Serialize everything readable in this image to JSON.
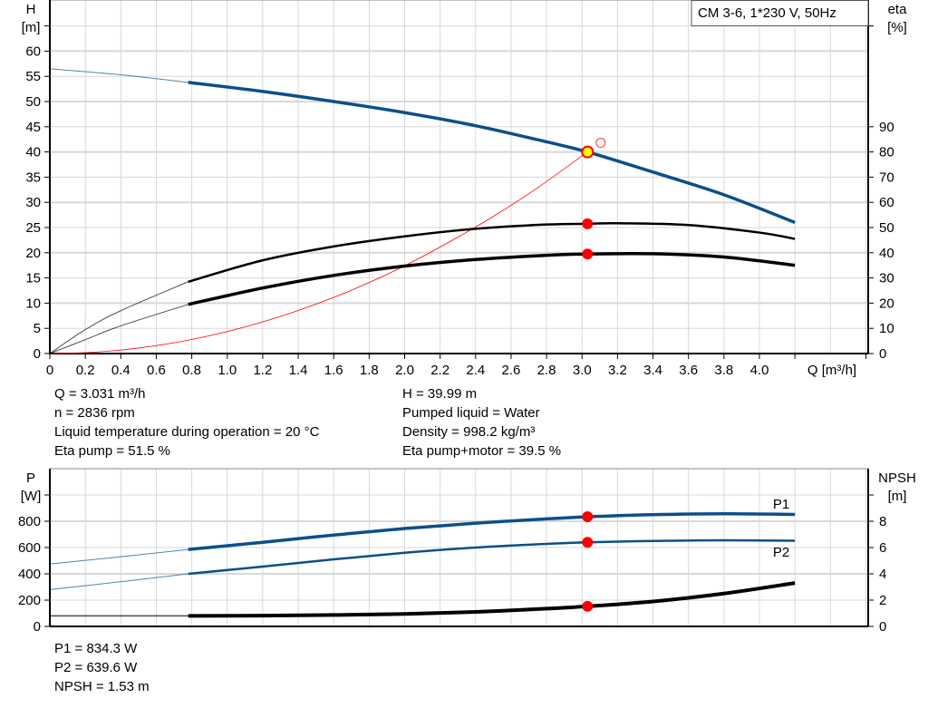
{
  "title": "CM 3-6, 1*230 V, 50Hz",
  "colors": {
    "head": "#0b4f8a",
    "power": "#0b4f8a",
    "efficiency": "#000000",
    "npsh": "#000000",
    "system": "#ff0000",
    "duty_point": "#ff0000",
    "operating_marker": "#ffff00",
    "grid": "#d8d8d8"
  },
  "chart_data": [
    {
      "type": "line",
      "title": "CM 3-6, 1*230 V, 50Hz",
      "xlabel": "Q [m³/h]",
      "ylabel": "H\n[m]",
      "ylabel_right": "eta\n[%]",
      "ylabel_lines": [
        "H",
        "[m]"
      ],
      "ylabel_right_lines": [
        "eta",
        "[%]"
      ],
      "xlim": [
        0,
        4.6
      ],
      "ylim": [
        0,
        70
      ],
      "ylim_right": [
        0,
        140
      ],
      "grid": true,
      "xticks": [
        "0",
        "0.2",
        "0.4",
        "0.6",
        "0.8",
        "1.0",
        "1.2",
        "1.4",
        "1.6",
        "1.8",
        "2.0",
        "2.2",
        "2.4",
        "2.6",
        "2.8",
        "3.0",
        "3.2",
        "3.4",
        "3.6",
        "3.8",
        "4.0"
      ],
      "yticks": [
        "0",
        "5",
        "10",
        "15",
        "20",
        "25",
        "30",
        "35",
        "40",
        "45",
        "50",
        "55",
        "60"
      ],
      "yticks_right": [
        "0",
        "10",
        "20",
        "30",
        "40",
        "50",
        "60",
        "70",
        "80",
        "90"
      ],
      "series": [
        {
          "id": "head",
          "axis": "left",
          "x": [
            0,
            0.4,
            0.78,
            1.2,
            1.6,
            2.0,
            2.4,
            2.8,
            3.03,
            3.4,
            3.8,
            4.2
          ],
          "y": [
            56.5,
            55.3,
            53.8,
            52.0,
            50.0,
            47.8,
            45.2,
            42.0,
            40.0,
            36.0,
            31.5,
            26.0
          ],
          "thin_until": 0.78
        },
        {
          "id": "eta-pump",
          "axis": "right",
          "x": [
            0,
            0.2,
            0.4,
            0.78,
            1.2,
            1.6,
            2.0,
            2.4,
            2.8,
            3.03,
            3.2,
            3.6,
            4.0,
            4.2
          ],
          "y": [
            0,
            9.5,
            17,
            28.5,
            37,
            42.5,
            46.5,
            49.5,
            51.2,
            51.5,
            51.7,
            51,
            48,
            45.5
          ],
          "thin_until": 0.78
        },
        {
          "id": "eta-pump-motor",
          "axis": "right",
          "x": [
            0,
            0.2,
            0.4,
            0.78,
            1.2,
            1.6,
            2.0,
            2.4,
            2.8,
            3.03,
            3.4,
            3.8,
            4.2
          ],
          "y": [
            0,
            5.5,
            11,
            19.5,
            26,
            31,
            34.7,
            37.3,
            39,
            39.5,
            39.6,
            38.3,
            35
          ],
          "thin_until": 0.78
        },
        {
          "id": "system-curve",
          "axis": "left",
          "x": [
            0,
            0.25,
            0.5,
            0.75,
            1,
            1.25,
            1.5,
            1.75,
            2,
            2.25,
            2.5,
            2.75,
            3.03
          ],
          "y": [
            0,
            0.27,
            1.09,
            2.45,
            4.36,
            6.81,
            9.8,
            13.3,
            17.4,
            22.1,
            27.2,
            32.9,
            40
          ]
        }
      ],
      "duty_points": [
        {
          "q": 3.031,
          "h": 39.99,
          "marker": "yellow"
        },
        {
          "q": 3.031,
          "eta": 51.5,
          "marker": "red"
        },
        {
          "q": 3.031,
          "eta": 39.5,
          "marker": "red"
        }
      ],
      "requested_point": {
        "q": 3.1,
        "h": 42
      }
    },
    {
      "type": "line",
      "ylabel": "P\n[W]",
      "ylabel_right": "NPSH\n[m]",
      "ylabel_lines": [
        "P",
        "[W]"
      ],
      "ylabel_right_lines": [
        "NPSH",
        "[m]"
      ],
      "xlim": [
        0,
        4.6
      ],
      "ylim": [
        0,
        1200
      ],
      "ylim_right": [
        0,
        12
      ],
      "grid": true,
      "yticks": [
        "0",
        "200",
        "400",
        "600",
        "800"
      ],
      "yticks_right": [
        "0",
        "2",
        "4",
        "6",
        "8"
      ],
      "series": [
        {
          "name": "P1",
          "id": "p1",
          "axis": "left",
          "x": [
            0,
            0.4,
            0.78,
            1.2,
            1.6,
            2.0,
            2.4,
            2.8,
            3.03,
            3.4,
            3.8,
            4.2
          ],
          "y": [
            475,
            530,
            585,
            640,
            695,
            745,
            785,
            818,
            834,
            850,
            857,
            852
          ],
          "thin_until": 0.78
        },
        {
          "name": "P2",
          "id": "p2",
          "axis": "left",
          "x": [
            0,
            0.4,
            0.78,
            1.2,
            1.6,
            2.0,
            2.4,
            2.8,
            3.03,
            3.4,
            3.8,
            4.2
          ],
          "y": [
            280,
            340,
            400,
            455,
            510,
            560,
            600,
            628,
            640,
            650,
            655,
            652
          ],
          "thin_until": 0.78
        },
        {
          "id": "npsh",
          "axis": "right",
          "x": [
            0,
            0.4,
            0.78,
            1.2,
            1.6,
            2.0,
            2.4,
            2.8,
            3.03,
            3.4,
            3.8,
            4.2
          ],
          "y": [
            0.8,
            0.8,
            0.8,
            0.82,
            0.87,
            0.95,
            1.1,
            1.35,
            1.53,
            1.9,
            2.5,
            3.3
          ],
          "thin_until": 0.78
        }
      ],
      "duty_points": [
        {
          "q": 3.031,
          "p": 834.3
        },
        {
          "q": 3.031,
          "p": 639.6
        },
        {
          "q": 3.031,
          "npsh": 1.53
        }
      ]
    }
  ],
  "results_top": {
    "left": [
      "Q = 3.031 m³/h",
      "n = 2836 rpm",
      "Liquid temperature during operation = 20 °C",
      "Eta pump = 51.5 %"
    ],
    "right": [
      "H = 39.99 m",
      "Pumped liquid = Water",
      "Density = 998.2 kg/m³",
      "Eta pump+motor = 39.5 %"
    ]
  },
  "results_bottom": [
    "P1 = 834.3 W",
    "P2 = 639.6 W",
    "NPSH = 1.53 m"
  ]
}
